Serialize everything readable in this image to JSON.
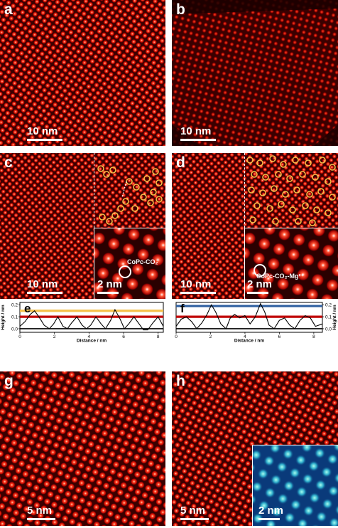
{
  "panels": {
    "a": {
      "label": "a",
      "scalebar": "10 nm"
    },
    "b": {
      "label": "b",
      "scalebar": "10 nm"
    },
    "c": {
      "label": "c",
      "scalebar": "10 nm",
      "inset_scalebar": "2 nm",
      "inset_label": "CoPc-CO₂"
    },
    "d": {
      "label": "d",
      "scalebar": "10 nm",
      "inset_scalebar": "2 nm",
      "inset_label": "CoPc-CO₂-Mg²⁺"
    },
    "e": {
      "label": "e"
    },
    "f": {
      "label": "f"
    },
    "g": {
      "label": "g",
      "scalebar": "5 nm"
    },
    "h": {
      "label": "h",
      "scalebar": "5 nm",
      "inset_scalebar": "2 nm"
    }
  },
  "chart_data": [
    {
      "type": "line",
      "panel": "e",
      "xlabel": "Distance / nm",
      "ylabel": "Height / nm",
      "xlim": [
        0,
        8.3
      ],
      "ylim": [
        -0.03,
        0.22
      ],
      "xticks": [
        0,
        2,
        4,
        6,
        8
      ],
      "yticks": [
        0.0,
        0.1,
        0.2
      ],
      "ytick_labels": [
        "0.0",
        "0.1",
        "0.2"
      ],
      "yaxis_side": "left",
      "reference_lines": [
        {
          "y": 0.0,
          "color": "#000000"
        },
        {
          "y": 0.1,
          "color": "#c00000"
        },
        {
          "y": 0.15,
          "color": "#f5c04a"
        }
      ],
      "x": [
        0,
        0.3,
        0.6,
        0.85,
        1.1,
        1.4,
        1.7,
        1.95,
        2.2,
        2.5,
        2.75,
        3.0,
        3.3,
        3.6,
        3.85,
        4.1,
        4.4,
        4.7,
        4.95,
        5.25,
        5.5,
        5.8,
        6.05,
        6.3,
        6.6,
        6.9,
        7.15,
        7.4,
        7.7,
        8.0,
        8.3
      ],
      "y": [
        0.02,
        0.06,
        0.12,
        0.15,
        0.1,
        0.03,
        0.0,
        0.04,
        0.1,
        0.02,
        0.0,
        0.05,
        0.1,
        0.03,
        0.0,
        0.03,
        0.1,
        0.04,
        0.0,
        0.07,
        0.16,
        0.08,
        0.0,
        0.04,
        0.1,
        0.04,
        -0.01,
        -0.01,
        0.05,
        0.1,
        0.02
      ]
    },
    {
      "type": "line",
      "panel": "f",
      "xlabel": "Distance / nm",
      "ylabel": "Height / nm",
      "xlim": [
        0,
        8.5
      ],
      "ylim": [
        -0.03,
        0.22
      ],
      "xticks": [
        0,
        2,
        4,
        6,
        8
      ],
      "yticks": [
        0.0,
        0.1,
        0.2
      ],
      "ytick_labels": [
        "0.0",
        "0.1",
        "0.2"
      ],
      "yaxis_side": "right",
      "reference_lines": [
        {
          "y": 0.0,
          "color": "#000000"
        },
        {
          "y": 0.1,
          "color": "#c00000"
        },
        {
          "y": 0.19,
          "color": "#2f5fa0"
        }
      ],
      "x": [
        0,
        0.3,
        0.6,
        0.9,
        1.2,
        1.5,
        1.8,
        2.05,
        2.3,
        2.6,
        2.9,
        3.15,
        3.4,
        3.7,
        4.0,
        4.3,
        4.6,
        4.9,
        5.15,
        5.4,
        5.7,
        6.0,
        6.3,
        6.6,
        6.9,
        7.2,
        7.5,
        7.8,
        8.1,
        8.5
      ],
      "y": [
        0.02,
        0.08,
        0.1,
        0.06,
        0.0,
        0.05,
        0.12,
        0.2,
        0.14,
        0.04,
        0.0,
        0.09,
        0.12,
        0.09,
        0.11,
        0.04,
        0.1,
        0.21,
        0.14,
        0.03,
        0.0,
        0.07,
        0.09,
        0.03,
        0.0,
        0.07,
        0.11,
        0.09,
        0.02,
        0.04
      ]
    }
  ]
}
